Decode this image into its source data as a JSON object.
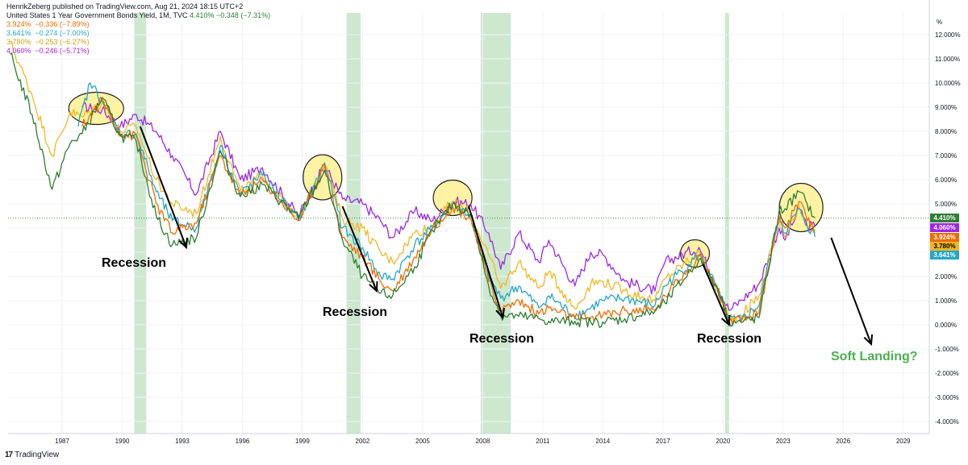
{
  "header": {
    "title_line": "HenrikZeberg published on TradingView.com, Aug 21, 2024 18:15 UTC+2",
    "symbol": "United States 1 Year Government Bonds Yield, 1M, TVC",
    "symbol_value": "4.410%",
    "symbol_change": "−0.348 (−7.31%)",
    "legend": [
      {
        "value": "3.924%",
        "change": "−0.336 (−7.89%)",
        "color": "#ef6c00"
      },
      {
        "value": "3.641%",
        "change": "−0.274 (−7.00%)",
        "color": "#26a6c6"
      },
      {
        "value": "3.780%",
        "change": "−0.253 (−6.27%)",
        "color": "#f2b722"
      },
      {
        "value": "4.060%",
        "change": "−0.246 (−5.71%)",
        "color": "#b11fe0"
      }
    ]
  },
  "footer": {
    "logo": "TradingView"
  },
  "annotations": {
    "recession_label": "Recession",
    "soft_landing": "Soft Landing?"
  },
  "colors": {
    "y1": "#2e7d32",
    "y2": "#ef6c00",
    "y3": "#26a6c6",
    "y5": "#f2b722",
    "y10": "#9c27e8",
    "recession_band": "#c8e6c9",
    "highlight": "#fdf3a3",
    "soft_landing": "#4caf50"
  },
  "chart_data": {
    "type": "line",
    "title": "United States 1 Year Government Bonds Yield, 1M, TVC",
    "y_unit": "%",
    "ylim": [
      -4.5,
      12.5
    ],
    "xlim": [
      1984.3,
      2030.3
    ],
    "x_ticks": [
      "1987",
      "1990",
      "1993",
      "1996",
      "1999",
      "2002",
      "2005",
      "2008",
      "2011",
      "2014",
      "2017",
      "2020",
      "2023",
      "2026",
      "2029"
    ],
    "y_ticks": [
      "12.000%",
      "11.000%",
      "10.000%",
      "9.000%",
      "8.000%",
      "7.000%",
      "6.000%",
      "5.000%",
      "4.000%",
      "3.000%",
      "2.000%",
      "1.000%",
      "0.000%",
      "-1.000%",
      "-2.000%",
      "-3.000%",
      "-4.000%"
    ],
    "last_value_tags": [
      {
        "label": "4.410%",
        "value": 4.41,
        "color": "#2e7d32"
      },
      {
        "label": "4.060%",
        "value": 4.06,
        "color": "#9c27e8"
      },
      {
        "label": "3.924%",
        "value": 3.924,
        "color": "#ef6c00"
      },
      {
        "label": "3.780%",
        "value": 3.78,
        "color": "#f2b722"
      },
      {
        "label": "3.641%",
        "value": 3.641,
        "color": "#26a6c6"
      }
    ],
    "recession_bands": [
      [
        1990.6,
        1991.2
      ],
      [
        2001.2,
        2001.9
      ],
      [
        2007.9,
        2009.4
      ],
      [
        2020.1,
        2020.3
      ]
    ],
    "series": [
      {
        "key": "y10",
        "color": "#9c27e8",
        "points": [
          [
            1988.0,
            9.0
          ],
          [
            1989.0,
            8.9
          ],
          [
            1989.9,
            8.2
          ],
          [
            1990.7,
            8.7
          ],
          [
            1991.7,
            8.0
          ],
          [
            1992.5,
            7.0
          ],
          [
            1993.7,
            5.4
          ],
          [
            1994.9,
            8.0
          ],
          [
            1995.9,
            6.0
          ],
          [
            1997.0,
            6.5
          ],
          [
            1998.8,
            4.5
          ],
          [
            2000.1,
            6.6
          ],
          [
            2001.0,
            5.2
          ],
          [
            2002.0,
            5.0
          ],
          [
            2002.9,
            4.3
          ],
          [
            2003.5,
            3.6
          ],
          [
            2004.6,
            4.7
          ],
          [
            2005.5,
            4.3
          ],
          [
            2006.5,
            5.1
          ],
          [
            2007.4,
            5.0
          ],
          [
            2008.3,
            3.8
          ],
          [
            2008.9,
            2.3
          ],
          [
            2009.8,
            3.8
          ],
          [
            2010.8,
            2.6
          ],
          [
            2011.3,
            3.5
          ],
          [
            2012.6,
            1.6
          ],
          [
            2013.4,
            3.0
          ],
          [
            2014.0,
            2.9
          ],
          [
            2015.1,
            1.8
          ],
          [
            2016.6,
            1.4
          ],
          [
            2017.1,
            2.6
          ],
          [
            2018.8,
            3.2
          ],
          [
            2019.7,
            1.6
          ],
          [
            2020.3,
            0.6
          ],
          [
            2020.9,
            1.0
          ],
          [
            2021.8,
            1.7
          ],
          [
            2022.8,
            4.0
          ],
          [
            2023.1,
            3.5
          ],
          [
            2023.8,
            4.8
          ],
          [
            2024.2,
            4.1
          ],
          [
            2024.6,
            4.06
          ]
        ]
      },
      {
        "key": "y5",
        "color": "#f2b722",
        "points": [
          [
            1984.4,
            11.7
          ],
          [
            1985.5,
            9.5
          ],
          [
            1986.5,
            7.0
          ],
          [
            1987.4,
            8.8
          ],
          [
            1988.0,
            8.6
          ],
          [
            1989.0,
            9.2
          ],
          [
            1989.9,
            8.0
          ],
          [
            1990.7,
            8.2
          ],
          [
            1991.7,
            6.0
          ],
          [
            1992.5,
            5.0
          ],
          [
            1993.7,
            4.6
          ],
          [
            1994.9,
            7.8
          ],
          [
            1995.9,
            5.5
          ],
          [
            1997.0,
            6.2
          ],
          [
            1998.8,
            4.3
          ],
          [
            2000.1,
            6.7
          ],
          [
            2001.0,
            4.4
          ],
          [
            2002.0,
            4.0
          ],
          [
            2002.9,
            3.0
          ],
          [
            2003.5,
            2.6
          ],
          [
            2004.6,
            3.8
          ],
          [
            2005.5,
            4.1
          ],
          [
            2006.5,
            5.1
          ],
          [
            2007.4,
            4.6
          ],
          [
            2008.3,
            2.9
          ],
          [
            2008.9,
            1.5
          ],
          [
            2009.8,
            2.6
          ],
          [
            2010.8,
            1.5
          ],
          [
            2011.3,
            2.2
          ],
          [
            2012.6,
            0.65
          ],
          [
            2013.4,
            1.7
          ],
          [
            2014.0,
            1.8
          ],
          [
            2015.1,
            1.4
          ],
          [
            2016.6,
            1.0
          ],
          [
            2017.1,
            1.9
          ],
          [
            2018.8,
            3.0
          ],
          [
            2019.7,
            1.4
          ],
          [
            2020.3,
            0.3
          ],
          [
            2020.9,
            0.4
          ],
          [
            2021.8,
            1.2
          ],
          [
            2022.8,
            4.3
          ],
          [
            2023.1,
            3.6
          ],
          [
            2023.8,
            4.9
          ],
          [
            2024.2,
            4.1
          ],
          [
            2024.6,
            3.78
          ]
        ]
      },
      {
        "key": "y3",
        "color": "#26a6c6",
        "points": [
          [
            1987.8,
            8.2
          ],
          [
            1988.4,
            10.0
          ],
          [
            1989.0,
            9.3
          ],
          [
            1989.9,
            7.9
          ],
          [
            1990.7,
            7.9
          ],
          [
            1991.7,
            5.5
          ],
          [
            1992.5,
            4.3
          ],
          [
            1993.7,
            4.0
          ],
          [
            1994.9,
            7.4
          ],
          [
            1995.9,
            5.4
          ],
          [
            1997.0,
            6.2
          ],
          [
            1998.8,
            4.3
          ],
          [
            2000.1,
            6.7
          ],
          [
            2001.0,
            4.0
          ],
          [
            2002.0,
            3.2
          ],
          [
            2002.9,
            2.0
          ],
          [
            2003.5,
            1.9
          ],
          [
            2004.6,
            3.3
          ],
          [
            2005.5,
            4.0
          ],
          [
            2006.5,
            5.0
          ],
          [
            2007.4,
            4.5
          ],
          [
            2008.3,
            2.0
          ],
          [
            2008.9,
            1.1
          ],
          [
            2009.8,
            1.6
          ],
          [
            2010.8,
            0.7
          ],
          [
            2011.3,
            1.2
          ],
          [
            2012.6,
            0.35
          ],
          [
            2013.4,
            0.7
          ],
          [
            2014.0,
            1.0
          ],
          [
            2015.1,
            1.1
          ],
          [
            2016.6,
            0.8
          ],
          [
            2017.1,
            1.6
          ],
          [
            2018.8,
            2.9
          ],
          [
            2019.7,
            1.5
          ],
          [
            2020.3,
            0.2
          ],
          [
            2020.9,
            0.2
          ],
          [
            2021.8,
            0.8
          ],
          [
            2022.8,
            4.5
          ],
          [
            2023.1,
            3.8
          ],
          [
            2023.8,
            4.8
          ],
          [
            2024.2,
            4.1
          ],
          [
            2024.6,
            3.641
          ]
        ]
      },
      {
        "key": "y2",
        "color": "#ef6c00",
        "points": [
          [
            1988.0,
            8.2
          ],
          [
            1989.0,
            9.3
          ],
          [
            1989.9,
            7.9
          ],
          [
            1990.7,
            7.8
          ],
          [
            1991.7,
            5.0
          ],
          [
            1992.5,
            3.8
          ],
          [
            1993.7,
            4.2
          ],
          [
            1994.9,
            7.0
          ],
          [
            1995.9,
            5.3
          ],
          [
            1997.0,
            6.0
          ],
          [
            1998.8,
            4.3
          ],
          [
            2000.1,
            6.6
          ],
          [
            2001.0,
            3.6
          ],
          [
            2002.0,
            2.8
          ],
          [
            2002.9,
            1.8
          ],
          [
            2003.5,
            1.4
          ],
          [
            2004.6,
            2.8
          ],
          [
            2005.5,
            4.0
          ],
          [
            2006.5,
            4.9
          ],
          [
            2007.4,
            4.4
          ],
          [
            2008.3,
            1.8
          ],
          [
            2008.9,
            0.6
          ],
          [
            2009.8,
            1.0
          ],
          [
            2010.8,
            0.45
          ],
          [
            2011.3,
            0.7
          ],
          [
            2012.6,
            0.25
          ],
          [
            2013.4,
            0.3
          ],
          [
            2014.0,
            0.4
          ],
          [
            2015.1,
            0.6
          ],
          [
            2016.6,
            0.6
          ],
          [
            2017.1,
            1.2
          ],
          [
            2018.8,
            2.85
          ],
          [
            2019.7,
            1.55
          ],
          [
            2020.3,
            0.15
          ],
          [
            2020.9,
            0.13
          ],
          [
            2021.8,
            0.5
          ],
          [
            2022.8,
            4.5
          ],
          [
            2023.1,
            4.0
          ],
          [
            2023.8,
            5.1
          ],
          [
            2024.2,
            4.3
          ],
          [
            2024.6,
            3.924
          ]
        ]
      },
      {
        "key": "y1",
        "color": "#2e7d32",
        "points": [
          [
            1984.4,
            11.2
          ],
          [
            1985.5,
            8.7
          ],
          [
            1986.5,
            5.6
          ],
          [
            1987.4,
            7.5
          ],
          [
            1988.0,
            7.9
          ],
          [
            1989.0,
            9.4
          ],
          [
            1989.9,
            7.8
          ],
          [
            1990.7,
            7.6
          ],
          [
            1991.7,
            4.5
          ],
          [
            1992.5,
            3.3
          ],
          [
            1993.7,
            3.6
          ],
          [
            1994.9,
            7.2
          ],
          [
            1995.9,
            5.3
          ],
          [
            1997.0,
            5.8
          ],
          [
            1998.8,
            4.4
          ],
          [
            2000.1,
            6.4
          ],
          [
            2001.0,
            3.5
          ],
          [
            2002.0,
            2.0
          ],
          [
            2002.9,
            1.3
          ],
          [
            2003.5,
            1.2
          ],
          [
            2004.6,
            2.4
          ],
          [
            2005.5,
            3.9
          ],
          [
            2006.5,
            5.0
          ],
          [
            2007.4,
            4.6
          ],
          [
            2008.3,
            1.6
          ],
          [
            2008.9,
            0.4
          ],
          [
            2009.8,
            0.35
          ],
          [
            2010.8,
            0.25
          ],
          [
            2011.3,
            0.15
          ],
          [
            2012.6,
            0.15
          ],
          [
            2013.4,
            0.1
          ],
          [
            2014.0,
            0.12
          ],
          [
            2015.1,
            0.25
          ],
          [
            2016.6,
            0.55
          ],
          [
            2017.1,
            0.9
          ],
          [
            2018.8,
            2.7
          ],
          [
            2019.7,
            1.6
          ],
          [
            2020.3,
            0.15
          ],
          [
            2020.9,
            0.1
          ],
          [
            2021.8,
            0.3
          ],
          [
            2022.8,
            4.7
          ],
          [
            2023.1,
            4.8
          ],
          [
            2023.8,
            5.5
          ],
          [
            2024.2,
            5.0
          ],
          [
            2024.6,
            4.41
          ]
        ]
      }
    ]
  }
}
